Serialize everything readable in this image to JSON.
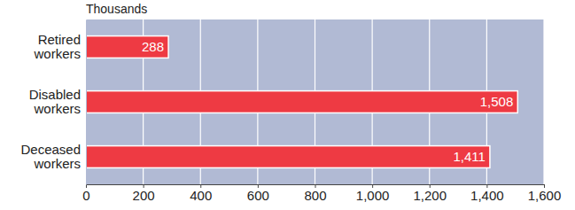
{
  "chart_data": {
    "type": "bar",
    "orientation": "horizontal",
    "xlabel": "Thousands",
    "categories": [
      "Retired workers",
      "Disabled workers",
      "Deceased workers"
    ],
    "values": [
      288,
      1508,
      1411
    ],
    "value_labels": [
      "288",
      "1,508",
      "1,411"
    ],
    "color": "#ee3a43",
    "data_labels": true,
    "grid": true,
    "xlim": [
      0,
      1600
    ],
    "xticks": [
      0,
      200,
      400,
      600,
      800,
      {
        "value": 1000,
        "label": "1,000"
      },
      {
        "value": 1200,
        "label": "1,200"
      },
      {
        "value": 1400,
        "label": "1,400"
      },
      {
        "value": 1600,
        "label": "1,600"
      }
    ]
  }
}
